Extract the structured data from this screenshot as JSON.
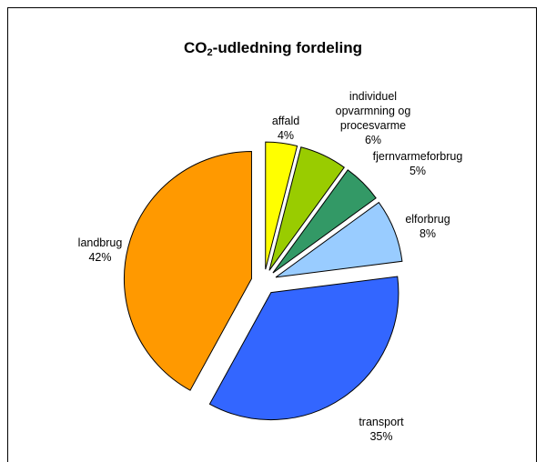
{
  "chart_data": {
    "type": "pie",
    "title": {
      "main": "CO",
      "sub": "2",
      "rest": "-udledning fordeling"
    },
    "slices": [
      {
        "label": "affald",
        "value": 4,
        "pct_label": "4%",
        "color": "#FFFF00"
      },
      {
        "label": "individuel opvarmning og procesvarme",
        "label_lines": [
          "individuel",
          "opvarmning og",
          "procesvarme"
        ],
        "value": 6,
        "pct_label": "6%",
        "color": "#99CC00"
      },
      {
        "label": "fjernvarmeforbrug",
        "value": 5,
        "pct_label": "5%",
        "color": "#339966"
      },
      {
        "label": "elforbrug",
        "value": 8,
        "pct_label": "8%",
        "color": "#99CCFF"
      },
      {
        "label": "transport",
        "value": 35,
        "pct_label": "35%",
        "color": "#3366FF"
      },
      {
        "label": "landbrug",
        "value": 42,
        "pct_label": "42%",
        "color": "#FF9900"
      }
    ]
  }
}
